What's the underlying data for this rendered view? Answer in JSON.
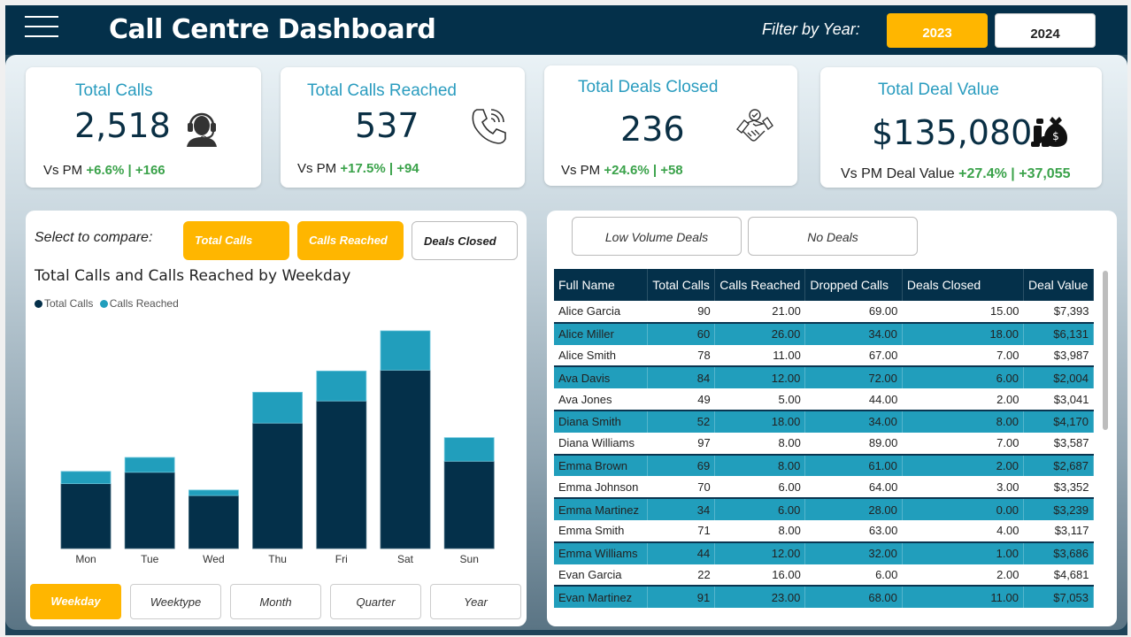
{
  "header": {
    "menu_icon": "hamburger-menu-icon",
    "title": "Call Centre Dashboard",
    "filter_label": "Filter by Year:",
    "years": [
      {
        "label": "2023",
        "selected": true
      },
      {
        "label": "2024",
        "selected": false
      }
    ]
  },
  "kpis": [
    {
      "title": "Total Calls",
      "value": "2,518",
      "prefix": "Vs PM",
      "pct": "+6.6%",
      "sep": "|",
      "delta": "+166",
      "icon": "headset-agent-icon"
    },
    {
      "title": "Total Calls Reached",
      "value": "537",
      "prefix": "Vs PM",
      "pct": "+17.5%",
      "sep": "|",
      "delta": "+94",
      "icon": "phone-ringing-icon"
    },
    {
      "title": "Total Deals Closed",
      "value": "236",
      "prefix": "Vs PM",
      "pct": "+24.6%",
      "sep": "|",
      "delta": "+58",
      "icon": "handshake-icon"
    },
    {
      "title": "Total Deal Value",
      "value": "$135,080",
      "prefix": "Vs PM Deal Value",
      "pct": "+27.4%",
      "sep": "|",
      "delta": "+37,055",
      "icon": "money-bag-icon"
    }
  ],
  "compare": {
    "label": "Select to compare:",
    "buttons": [
      {
        "label": "Total Calls",
        "selected": true
      },
      {
        "label": "Calls Reached",
        "selected": true
      },
      {
        "label": "Deals Closed",
        "selected": false
      }
    ]
  },
  "axis_buttons": [
    {
      "label": "Weekday",
      "selected": true
    },
    {
      "label": "Weektype",
      "selected": false
    },
    {
      "label": "Month",
      "selected": false
    },
    {
      "label": "Quarter",
      "selected": false
    },
    {
      "label": "Year",
      "selected": false
    }
  ],
  "chart_data": {
    "type": "bar",
    "stacked": true,
    "title": "Total Calls and Calls Reached by Weekday",
    "xlabel": "",
    "ylabel": "",
    "categories": [
      "Mon",
      "Tue",
      "Wed",
      "Thu",
      "Fri",
      "Sat",
      "Sun"
    ],
    "series": [
      {
        "name": "Total Calls",
        "color": "#04304a",
        "values": [
          223,
          262,
          182,
          431,
          507,
          613,
          300
        ]
      },
      {
        "name": "Calls Reached",
        "color": "#219ebc",
        "values": [
          42,
          51,
          19,
          106,
          103,
          135,
          81
        ]
      }
    ],
    "ylim": [
      0,
      760
    ],
    "grid": false,
    "legend": "top-left"
  },
  "table_filters": [
    {
      "label": "Low Volume Deals"
    },
    {
      "label": "No Deals"
    }
  ],
  "table": {
    "columns": [
      "Full Name",
      "Total Calls",
      "Calls Reached",
      "Dropped Calls",
      "Deals Closed",
      "Deal Value"
    ],
    "rows": [
      [
        "Alice Garcia",
        "90",
        "21.00",
        "69.00",
        "15.00",
        "$7,393"
      ],
      [
        "Alice Miller",
        "60",
        "26.00",
        "34.00",
        "18.00",
        "$6,131"
      ],
      [
        "Alice Smith",
        "78",
        "11.00",
        "67.00",
        "7.00",
        "$3,987"
      ],
      [
        "Ava Davis",
        "84",
        "12.00",
        "72.00",
        "6.00",
        "$2,004"
      ],
      [
        "Ava Jones",
        "49",
        "5.00",
        "44.00",
        "2.00",
        "$3,041"
      ],
      [
        "Diana Smith",
        "52",
        "18.00",
        "34.00",
        "8.00",
        "$4,170"
      ],
      [
        "Diana Williams",
        "97",
        "8.00",
        "89.00",
        "7.00",
        "$3,587"
      ],
      [
        "Emma Brown",
        "69",
        "8.00",
        "61.00",
        "2.00",
        "$2,687"
      ],
      [
        "Emma Johnson",
        "70",
        "6.00",
        "64.00",
        "3.00",
        "$3,352"
      ],
      [
        "Emma Martinez",
        "34",
        "6.00",
        "28.00",
        "0.00",
        "$3,239"
      ],
      [
        "Emma Smith",
        "71",
        "8.00",
        "63.00",
        "4.00",
        "$3,117"
      ],
      [
        "Emma Williams",
        "44",
        "12.00",
        "32.00",
        "1.00",
        "$3,686"
      ],
      [
        "Evan Garcia",
        "22",
        "16.00",
        "6.00",
        "2.00",
        "$4,681"
      ],
      [
        "Evan Martinez",
        "91",
        "23.00",
        "68.00",
        "11.00",
        "$7,053"
      ]
    ]
  },
  "colors": {
    "accent": "#ffb600",
    "navy": "#04304a",
    "teal": "#219ebc",
    "positive": "#3aa24a",
    "kpi_title": "#2a9cbf"
  }
}
